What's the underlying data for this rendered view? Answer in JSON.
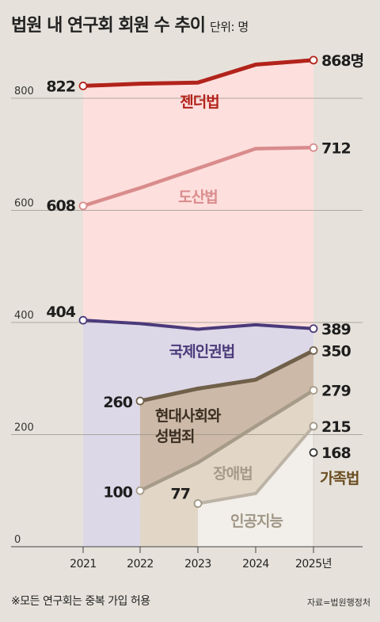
{
  "title": "법원 내 연구회 회원 수 추이",
  "unit": "단위: 명",
  "footnote": "※모든 연구회는 중복 가입 허용",
  "source": "자료=법원행정처",
  "chart_data": {
    "type": "line",
    "categories": [
      "2021",
      "2022",
      "2023",
      "2024",
      "2025년"
    ],
    "ylim": [
      0,
      900
    ],
    "yticks": [
      "0",
      "200",
      "400",
      "600",
      "800"
    ],
    "ytick_values": [
      0,
      200,
      400,
      600,
      800
    ],
    "series": [
      {
        "name": "젠더법",
        "values": [
          822,
          826,
          828,
          860,
          868
        ],
        "color": "#b2231b",
        "fill": "#fddfdd",
        "labels": {
          "0": "822",
          "4": "868명"
        }
      },
      {
        "name": "도산법",
        "values": [
          608,
          640,
          675,
          710,
          712
        ],
        "color": "#d98c8c",
        "fill": null,
        "labels": {
          "0": "608",
          "4": "712"
        }
      },
      {
        "name": "국제인권법",
        "values": [
          404,
          398,
          388,
          396,
          389
        ],
        "color": "#4b3a7a",
        "fill": "#dcd8e8",
        "labels": {
          "0": "404",
          "4": "389"
        }
      },
      {
        "name": "현대사회와 성범죄",
        "values": [
          null,
          260,
          282,
          298,
          350
        ],
        "color": "#70604a",
        "fill": "#ccb9a7",
        "labels": {
          "1": "260",
          "4": "350"
        }
      },
      {
        "name": "장애법",
        "values": [
          null,
          100,
          150,
          215,
          279
        ],
        "color": "#a69b88",
        "fill": "#e2d7c7",
        "labels": {
          "1": "100",
          "4": "279"
        }
      },
      {
        "name": "인공지능",
        "values": [
          null,
          null,
          77,
          95,
          215
        ],
        "color": "#bcb3a6",
        "fill": "#f2efea",
        "labels": {
          "2": "77",
          "4": "215"
        }
      },
      {
        "name": "가족법",
        "values": [
          null,
          null,
          null,
          null,
          168
        ],
        "color": "#5a4b3c",
        "fill": null,
        "labels": {
          "4": "168"
        }
      }
    ]
  }
}
